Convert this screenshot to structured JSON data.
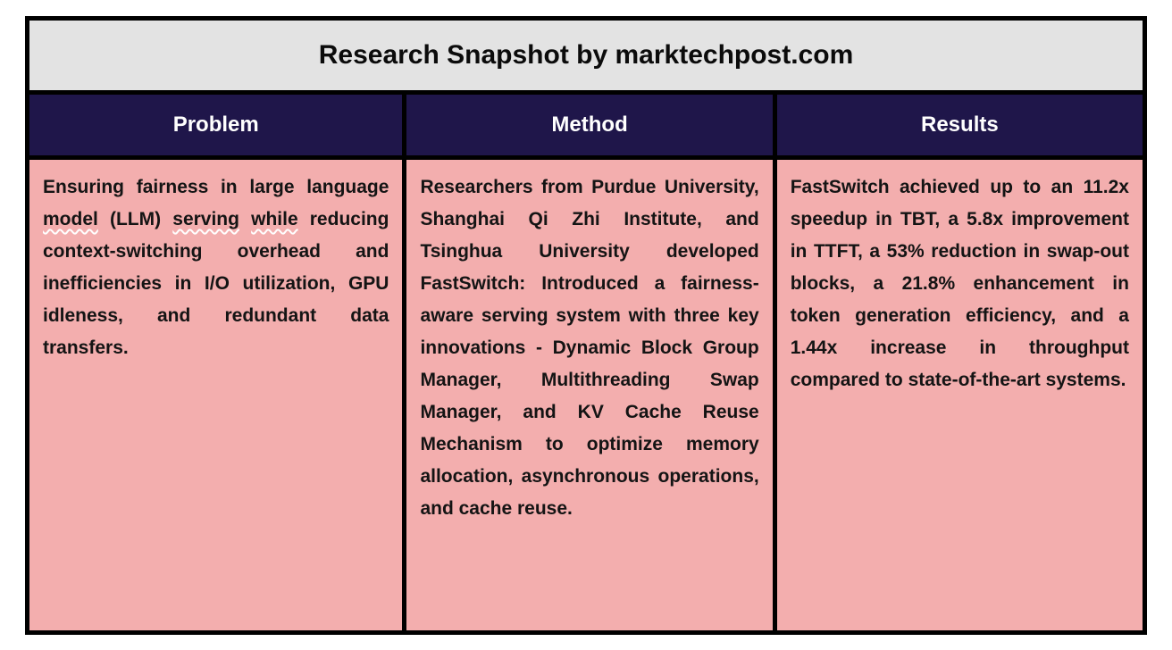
{
  "title": "Research Snapshot by marktechpost.com",
  "columns": [
    {
      "header": "Problem"
    },
    {
      "header": "Method"
    },
    {
      "header": "Results"
    }
  ],
  "cells": {
    "problem": {
      "seg1": "Ensuring fairness in large language ",
      "misspelled1": "model",
      "seg2": " (LLM) ",
      "misspelled2": "serving",
      "seg3": " ",
      "misspelled3": "while",
      "seg4": " reducing context-switching overhead and inefficiencies in I/O utilization, GPU idleness, and redundant data transfers."
    },
    "method": "Researchers from Purdue University, Shanghai Qi Zhi Institute, and Tsinghua University developed FastSwitch: Introduced a fairness-aware serving system with three key innovations - Dynamic Block Group Manager, Multithreading Swap Manager, and KV Cache Reuse Mechanism to optimize memory allocation, asynchronous operations, and cache reuse.",
    "results": "FastSwitch achieved up to an 11.2x speedup in TBT, a 5.8x improvement in TTFT, a 53% reduction in swap-out blocks, a 21.8% enhancement in token generation efficiency, and a 1.44x increase in throughput compared to state-of-the-art systems."
  },
  "colors": {
    "title_bg": "#e3e3e3",
    "header_bg": "#1f164a",
    "header_text": "#ffffff",
    "body_bg": "#f3aeae",
    "body_text": "#141414",
    "border": "#000000"
  }
}
